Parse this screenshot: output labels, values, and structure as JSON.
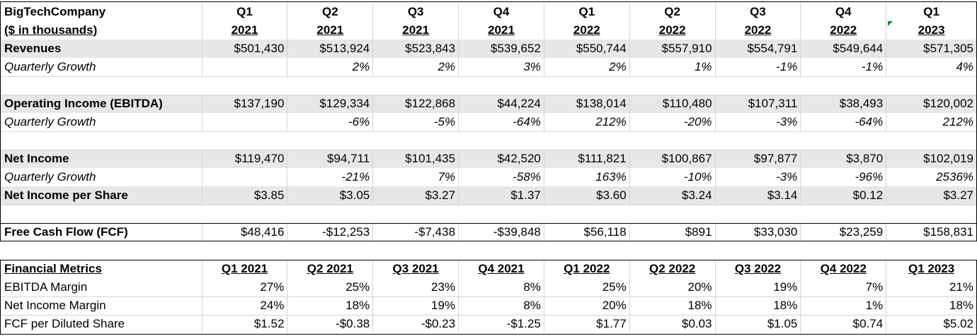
{
  "header": {
    "company": "BigTechCompany",
    "units": "($ in thousands)",
    "quarters": [
      "Q1",
      "Q2",
      "Q3",
      "Q4",
      "Q1",
      "Q2",
      "Q3",
      "Q4",
      "Q1"
    ],
    "years": [
      "2021",
      "2021",
      "2021",
      "2021",
      "2022",
      "2022",
      "2022",
      "2022",
      "2023"
    ]
  },
  "rows": {
    "revenues": {
      "label": "Revenues",
      "values": [
        "$501,430",
        "$513,924",
        "$523,843",
        "$539,652",
        "$550,744",
        "$557,910",
        "$554,791",
        "$549,644",
        "$571,305"
      ]
    },
    "revenue_growth": {
      "label": "Quarterly Growth",
      "values": [
        "",
        "2%",
        "2%",
        "3%",
        "2%",
        "1%",
        "-1%",
        "-1%",
        "4%"
      ]
    },
    "operating_income": {
      "label": "Operating Income (EBITDA)",
      "values": [
        "$137,190",
        "$129,334",
        "$122,868",
        "$44,224",
        "$138,014",
        "$110,480",
        "$107,311",
        "$38,493",
        "$120,002"
      ]
    },
    "operating_growth": {
      "label": "Quarterly Growth",
      "values": [
        "",
        "-6%",
        "-5%",
        "-64%",
        "212%",
        "-20%",
        "-3%",
        "-64%",
        "212%"
      ]
    },
    "net_income": {
      "label": "Net Income",
      "values": [
        "$119,470",
        "$94,711",
        "$101,435",
        "$42,520",
        "$111,821",
        "$100,867",
        "$97,877",
        "$3,870",
        "$102,019"
      ]
    },
    "net_income_growth": {
      "label": "Quarterly Growth",
      "values": [
        "",
        "-21%",
        "7%",
        "-58%",
        "163%",
        "-10%",
        "-3%",
        "-96%",
        "2536%"
      ]
    },
    "net_income_per_share": {
      "label": "Net Income per Share",
      "values": [
        "$3.85",
        "$3.05",
        "$3.27",
        "$1.37",
        "$3.60",
        "$3.24",
        "$3.14",
        "$0.12",
        "$3.27"
      ]
    },
    "fcf": {
      "label": "Free Cash Flow (FCF)",
      "values": [
        "$48,416",
        "-$12,253",
        "-$7,438",
        "-$39,848",
        "$56,118",
        "$891",
        "$33,030",
        "$23,259",
        "$158,831"
      ]
    }
  },
  "metrics": {
    "title": "Financial Metrics",
    "columns": [
      "Q1 2021",
      "Q2 2021",
      "Q3 2021",
      "Q4 2021",
      "Q1 2022",
      "Q2 2022",
      "Q3 2022",
      "Q4 2022",
      "Q1 2023"
    ],
    "ebitda_margin": {
      "label": "EBITDA Margin",
      "values": [
        "27%",
        "25%",
        "23%",
        "8%",
        "25%",
        "20%",
        "19%",
        "7%",
        "21%"
      ]
    },
    "net_income_margin": {
      "label": "Net Income Margin",
      "values": [
        "24%",
        "18%",
        "19%",
        "8%",
        "20%",
        "18%",
        "18%",
        "1%",
        "18%"
      ]
    },
    "fcf_per_share": {
      "label": "FCF per Diluted Share",
      "values": [
        "$1.52",
        "-$0.38",
        "-$0.23",
        "-$1.25",
        "$1.77",
        "$0.03",
        "$1.05",
        "$0.74",
        "$5.02"
      ]
    }
  },
  "colors": {
    "shade": "#e7e7e7",
    "grid": "#d4d4d4",
    "comment_flag": "#1e8a3a"
  }
}
